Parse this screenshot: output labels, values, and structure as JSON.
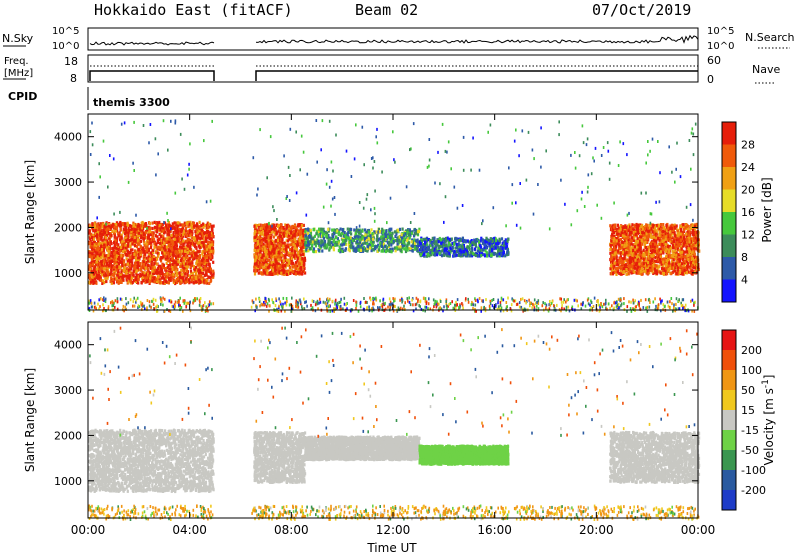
{
  "header": {
    "title": "Hokkaido East (fitACF)",
    "beam": "Beam 02",
    "date": "07/Oct/2019"
  },
  "status_panels": {
    "nsky_label": "N.Sky",
    "nsearch_label": "N.Search",
    "nsky_ticks": [
      "10^5",
      "10^0"
    ],
    "freq_label_line1": "Freq.",
    "freq_label_line2": "[MHz]",
    "freq_ticks": [
      "18",
      "8"
    ],
    "nave_label": "Nave",
    "nave_ticks": [
      "60",
      "0"
    ],
    "cpid_label": "CPID",
    "cpid_value": "themis 3300"
  },
  "chart_data": [
    {
      "type": "heatmap",
      "name": "power",
      "ylabel": "Slant Range [km]",
      "xlabel": "",
      "x_ticks": [
        "00:00",
        "04:00",
        "08:00",
        "12:00",
        "16:00",
        "20:00",
        "00:00"
      ],
      "y_ticks": [
        1000,
        2000,
        3000,
        4000
      ],
      "xlim_hours": [
        0,
        24
      ],
      "ylim_km": [
        180,
        4500
      ],
      "data_gaps_hours": [
        [
          4.9,
          6.4
        ]
      ],
      "colorbar": {
        "label": "Power [dB]",
        "ticks": [
          "28",
          "24",
          "20",
          "16",
          "12",
          "8",
          "4"
        ],
        "bins": [
          {
            "lo": 0,
            "hi": 4,
            "color": "#1414ff"
          },
          {
            "lo": 4,
            "hi": 8,
            "color": "#2d5aa8"
          },
          {
            "lo": 8,
            "hi": 12,
            "color": "#3c8c5a"
          },
          {
            "lo": 12,
            "hi": 16,
            "color": "#46c83c"
          },
          {
            "lo": 16,
            "hi": 20,
            "color": "#e6dc28"
          },
          {
            "lo": 20,
            "hi": 24,
            "color": "#f0a014"
          },
          {
            "lo": 24,
            "hi": 28,
            "color": "#f05a0a"
          },
          {
            "lo": 28,
            "hi": 32,
            "color": "#e61e0a"
          }
        ]
      },
      "regions": [
        {
          "t": [
            0.0,
            4.9
          ],
          "r": [
            800,
            2150
          ],
          "level": 28
        },
        {
          "t": [
            6.5,
            8.5
          ],
          "r": [
            1000,
            2100
          ],
          "level": 27
        },
        {
          "t": [
            8.5,
            13.0
          ],
          "r": [
            1500,
            2000
          ],
          "level": 11
        },
        {
          "t": [
            13.0,
            16.5
          ],
          "r": [
            1400,
            1800
          ],
          "level": 7
        },
        {
          "t": [
            20.5,
            24.0
          ],
          "r": [
            1000,
            2100
          ],
          "level": 27
        }
      ]
    },
    {
      "type": "heatmap",
      "name": "velocity",
      "ylabel": "Slant Range [km]",
      "xlabel": "Time UT",
      "x_ticks": [
        "00:00",
        "04:00",
        "08:00",
        "12:00",
        "16:00",
        "20:00",
        "00:00"
      ],
      "y_ticks": [
        1000,
        2000,
        3000,
        4000
      ],
      "xlim_hours": [
        0,
        24
      ],
      "ylim_km": [
        180,
        4500
      ],
      "data_gaps_hours": [
        [
          4.9,
          6.4
        ]
      ],
      "colorbar": {
        "label": "Velocity [m s^-1]",
        "ticks": [
          "200",
          "100",
          "50",
          "15",
          "-15",
          "-50",
          "-100",
          "-200"
        ],
        "bins": [
          {
            "lo": 200,
            "hi": 300,
            "color": "#1e3cc8"
          },
          {
            "lo": 100,
            "hi": 200,
            "color": "#2a5aa0"
          },
          {
            "lo": 50,
            "hi": 100,
            "color": "#3a9650"
          },
          {
            "lo": 15,
            "hi": 50,
            "color": "#6ed246"
          },
          {
            "lo": -15,
            "hi": 15,
            "color": "#c8c8c3"
          },
          {
            "lo": -50,
            "hi": -15,
            "color": "#f0c81e"
          },
          {
            "lo": -100,
            "hi": -50,
            "color": "#f09614"
          },
          {
            "lo": -200,
            "hi": -100,
            "color": "#f0500a"
          },
          {
            "lo": -300,
            "hi": -200,
            "color": "#e61414"
          }
        ]
      },
      "regions": [
        {
          "t": [
            0.0,
            4.9
          ],
          "r": [
            800,
            2150
          ],
          "level": 0
        },
        {
          "t": [
            6.5,
            8.5
          ],
          "r": [
            1000,
            2100
          ],
          "level": 0
        },
        {
          "t": [
            8.5,
            13.0
          ],
          "r": [
            1500,
            2000
          ],
          "level": 0
        },
        {
          "t": [
            13.0,
            16.5
          ],
          "r": [
            1400,
            1800
          ],
          "level": 30
        },
        {
          "t": [
            20.5,
            24.0
          ],
          "r": [
            1000,
            2100
          ],
          "level": 0
        }
      ]
    }
  ]
}
